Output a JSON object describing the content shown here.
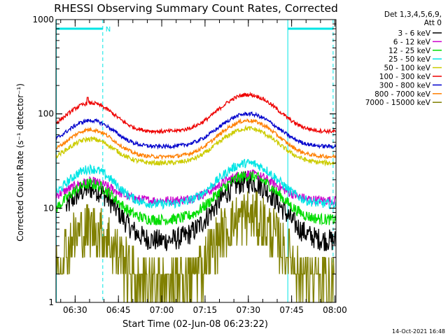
{
  "chart_data": {
    "type": "line",
    "title": "RHESSI Observing Summary Count Rates, Corrected",
    "xlabel": "Start Time (02-Jun-08 06:23:22)",
    "ylabel": "Corrected Count Rate (s⁻¹ detector⁻¹)",
    "yscale": "log",
    "ylim": [
      1,
      1000
    ],
    "xlim_minutes": [
      0,
      97
    ],
    "y_ticks": [
      {
        "value": 1,
        "label": "1"
      },
      {
        "value": 10,
        "label": "10"
      },
      {
        "value": 100,
        "label": "100"
      },
      {
        "value": 1000,
        "label": "1000"
      }
    ],
    "x_ticks": [
      {
        "minute": 6.63,
        "label": "06:30"
      },
      {
        "minute": 21.63,
        "label": "06:45"
      },
      {
        "minute": 36.63,
        "label": "07:00"
      },
      {
        "minute": 51.63,
        "label": "07:15"
      },
      {
        "minute": 66.63,
        "label": "07:30"
      },
      {
        "minute": 81.63,
        "label": "07:45"
      },
      {
        "minute": 96.63,
        "label": "08:00"
      }
    ],
    "legend_header": [
      "Det 1,3,4,5,6,9,",
      "Att 0"
    ],
    "legend_position": "top-right",
    "night_intervals_minutes": [
      [
        0,
        16.2
      ],
      [
        80.3,
        96.0
      ]
    ],
    "saa_marker": {
      "label": "N",
      "minute": 16.2
    },
    "peak_minutes": [
      12,
      66.5
    ],
    "series": [
      {
        "name": "3 - 6 keV",
        "color": "#000000",
        "base": 4.5,
        "peaks": [
          16,
          19
        ],
        "noise": 0.12,
        "start_minute": 3.5
      },
      {
        "name": "6 - 12 keV",
        "color": "#cc00cc",
        "base": 12,
        "peaks": [
          19,
          23
        ],
        "noise": 0.05,
        "start_minute": 0
      },
      {
        "name": "12 - 25 keV",
        "color": "#00dd00",
        "base": 7.5,
        "peaks": [
          18,
          22
        ],
        "noise": 0.06,
        "start_minute": 0
      },
      {
        "name": "25 - 50 keV",
        "color": "#00e5e5",
        "base": 11,
        "peaks": [
          26,
          30
        ],
        "noise": 0.05,
        "start_minute": 0
      },
      {
        "name": "50 - 100 keV",
        "color": "#cccc00",
        "base": 30,
        "peaks": [
          54,
          70
        ],
        "noise": 0.025,
        "start_minute": 0
      },
      {
        "name": "100 - 300 keV",
        "color": "#ee0000",
        "base": 65,
        "peaks": [
          130,
          160
        ],
        "noise": 0.02,
        "start_minute": 0
      },
      {
        "name": "300 - 800 keV",
        "color": "#0000cc",
        "base": 45,
        "peaks": [
          85,
          100
        ],
        "noise": 0.02,
        "start_minute": 0
      },
      {
        "name": "800 - 7000 keV",
        "color": "#ff7f00",
        "base": 35,
        "peaks": [
          68,
          85
        ],
        "noise": 0.02,
        "start_minute": 0
      },
      {
        "name": "7000 - 15000 keV",
        "color": "#808000",
        "base": 1.5,
        "peaks": [
          6,
          8
        ],
        "noise": 0.3,
        "start_minute": 0
      }
    ]
  },
  "footer_timestamp": "14-Oct-2021 16:48"
}
